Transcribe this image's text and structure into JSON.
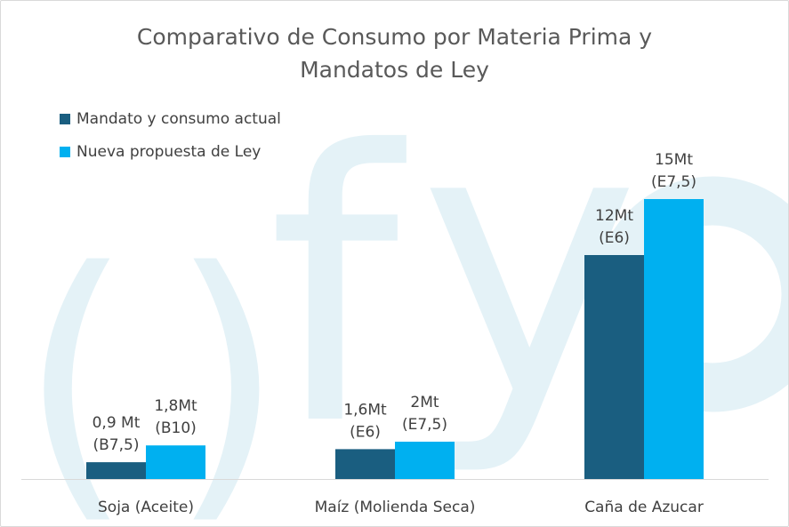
{
  "colors": {
    "series_dark": "#1a5e80",
    "series_light": "#00b0f0",
    "watermark": "#e4f2f7",
    "axis": "#d9d9d9",
    "label_text": "#404040",
    "title_text": "#595959"
  },
  "chart_data": {
    "type": "bar",
    "title": "Comparativo de Consumo por Materia Prima y\nMandatos de Ley",
    "xlabel": "",
    "ylabel": "",
    "categories": [
      "Soja (Aceite)",
      "Maíz (Molienda Seca)",
      "Caña de Azucar"
    ],
    "series": [
      {
        "name": "Mandato y consumo actual",
        "color": "#1a5e80",
        "values": [
          0.9,
          1.6,
          12
        ],
        "labels": [
          [
            "0,9 Mt",
            "(B7,5)"
          ],
          [
            "1,6Mt",
            "(E6)"
          ],
          [
            "12Mt",
            "(E6)"
          ]
        ]
      },
      {
        "name": "Nueva propuesta de Ley",
        "color": "#00b0f0",
        "values": [
          1.8,
          2,
          15
        ],
        "labels": [
          [
            "1,8Mt",
            "(B10)"
          ],
          [
            "2Mt",
            "(E7,5)"
          ],
          [
            "15Mt",
            "(E7,5)"
          ]
        ]
      }
    ],
    "ylim": [
      0,
      16
    ],
    "grid": false,
    "legend_position": "top-left"
  }
}
